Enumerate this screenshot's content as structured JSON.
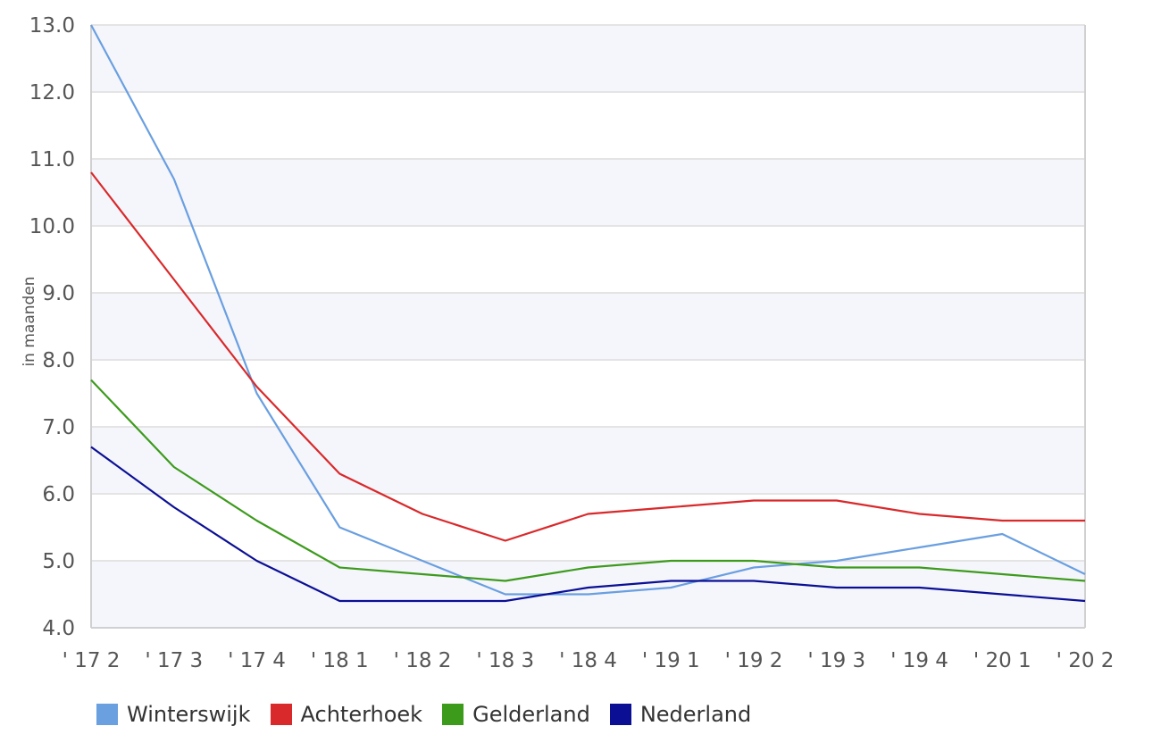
{
  "chart_data": {
    "type": "line",
    "ylabel": "in maanden",
    "xlabel": "",
    "ylim": [
      4.0,
      13.0
    ],
    "yticks": [
      "4.0",
      "5.0",
      "6.0",
      "7.0",
      "8.0",
      "9.0",
      "10.0",
      "11.0",
      "12.0",
      "13.0"
    ],
    "categories": [
      "' 17 2",
      "' 17 3",
      "' 17 4",
      "' 18 1",
      "' 18 2",
      "' 18 3",
      "' 18 4",
      "' 19 1",
      "' 19 2",
      "' 19 3",
      "' 19 4",
      "' 20 1",
      "' 20 2"
    ],
    "grid": true,
    "legend_position": "bottom-left",
    "series": [
      {
        "name": "Winterswijk",
        "color": "#6a9fe0",
        "values": [
          13.0,
          10.7,
          7.5,
          5.5,
          5.0,
          4.5,
          4.5,
          4.6,
          4.9,
          5.0,
          5.2,
          5.4,
          4.8
        ]
      },
      {
        "name": "Achterhoek",
        "color": "#d9292b",
        "values": [
          10.8,
          9.2,
          7.6,
          6.3,
          5.7,
          5.3,
          5.7,
          5.8,
          5.9,
          5.9,
          5.7,
          5.6,
          5.6
        ]
      },
      {
        "name": "Gelderland",
        "color": "#3d9b1c",
        "values": [
          7.7,
          6.4,
          5.6,
          4.9,
          4.8,
          4.7,
          4.9,
          5.0,
          5.0,
          4.9,
          4.9,
          4.8,
          4.7
        ]
      },
      {
        "name": "Nederland",
        "color": "#0b0f94",
        "values": [
          6.7,
          5.8,
          5.0,
          4.4,
          4.4,
          4.4,
          4.6,
          4.7,
          4.7,
          4.6,
          4.6,
          4.5,
          4.4
        ]
      }
    ],
    "colors": {
      "band": "#f5f6fc",
      "gridline": "#e4e4e4",
      "axis": "#d0d0d0"
    }
  }
}
